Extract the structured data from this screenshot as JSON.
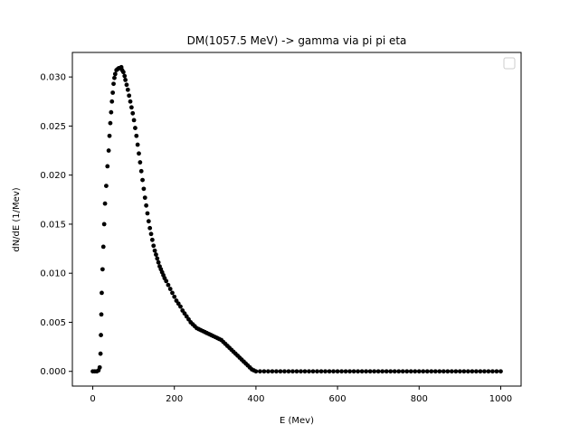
{
  "chart_data": {
    "type": "scatter",
    "title": "DM(1057.5 MeV) -> gamma via pi pi eta",
    "xlabel": "E (Mev)",
    "ylabel": "dN/dE (1/Mev)",
    "xlim": [
      -50,
      1050
    ],
    "ylim": [
      -0.0015,
      0.0325
    ],
    "xticks": [
      0,
      200,
      400,
      600,
      800,
      1000
    ],
    "xtick_labels": [
      "0",
      "200",
      "400",
      "600",
      "800",
      "1000"
    ],
    "yticks": [
      0.0,
      0.005,
      0.01,
      0.015,
      0.02,
      0.025,
      0.03
    ],
    "ytick_labels": [
      "0.000",
      "0.005",
      "0.010",
      "0.015",
      "0.020",
      "0.025",
      "0.030"
    ],
    "grid": false,
    "legend": {
      "placement": "upper-right",
      "entries": []
    },
    "marker_color": "#000000",
    "series": [
      {
        "points": [
          [
            0,
            0.0
          ],
          [
            5,
            0.0
          ],
          [
            10,
            0.0
          ],
          [
            14,
            0.0001
          ],
          [
            17,
            0.0004
          ],
          [
            19,
            0.0018
          ],
          [
            20,
            0.0037
          ],
          [
            21,
            0.0058
          ],
          [
            22,
            0.008
          ],
          [
            24,
            0.0104
          ],
          [
            26,
            0.0127
          ],
          [
            28,
            0.015
          ],
          [
            30,
            0.0171
          ],
          [
            33,
            0.0189
          ],
          [
            36,
            0.0209
          ],
          [
            39,
            0.0225
          ],
          [
            41,
            0.024
          ],
          [
            43,
            0.0253
          ],
          [
            45,
            0.0264
          ],
          [
            47,
            0.0275
          ],
          [
            49,
            0.0284
          ],
          [
            51,
            0.0293
          ],
          [
            53,
            0.0299
          ],
          [
            55,
            0.0303
          ],
          [
            58,
            0.0307
          ],
          [
            61,
            0.0308
          ],
          [
            64,
            0.0309
          ],
          [
            67,
            0.0309
          ],
          [
            70,
            0.031
          ],
          [
            72,
            0.0307
          ],
          [
            75,
            0.0305
          ],
          [
            78,
            0.0301
          ],
          [
            80,
            0.0297
          ],
          [
            83,
            0.0292
          ],
          [
            86,
            0.0287
          ],
          [
            89,
            0.0281
          ],
          [
            92,
            0.0275
          ],
          [
            95,
            0.0269
          ],
          [
            98,
            0.0263
          ],
          [
            101,
            0.0256
          ],
          [
            104,
            0.0248
          ],
          [
            107,
            0.024
          ],
          [
            110,
            0.0231
          ],
          [
            113,
            0.0222
          ],
          [
            116,
            0.0213
          ],
          [
            119,
            0.0204
          ],
          [
            122,
            0.0195
          ],
          [
            125,
            0.0186
          ],
          [
            128,
            0.0177
          ],
          [
            131,
            0.0169
          ],
          [
            134,
            0.0161
          ],
          [
            137,
            0.0153
          ],
          [
            140,
            0.0146
          ],
          [
            143,
            0.014
          ],
          [
            146,
            0.0134
          ],
          [
            149,
            0.0128
          ],
          [
            152,
            0.0123
          ],
          [
            155,
            0.0119
          ],
          [
            158,
            0.0115
          ],
          [
            161,
            0.0111
          ],
          [
            164,
            0.0107
          ],
          [
            167,
            0.0104
          ],
          [
            170,
            0.0101
          ],
          [
            173,
            0.0098
          ],
          [
            176,
            0.0095
          ],
          [
            180,
            0.0092
          ],
          [
            185,
            0.0088
          ],
          [
            190,
            0.0084
          ],
          [
            195,
            0.008
          ],
          [
            200,
            0.0076
          ],
          [
            205,
            0.0072
          ],
          [
            210,
            0.0069
          ],
          [
            215,
            0.0066
          ],
          [
            220,
            0.0062
          ],
          [
            225,
            0.0059
          ],
          [
            230,
            0.0056
          ],
          [
            235,
            0.0053
          ],
          [
            240,
            0.005
          ],
          [
            245,
            0.0048
          ],
          [
            250,
            0.0046
          ],
          [
            255,
            0.0044
          ],
          [
            260,
            0.0043
          ],
          [
            265,
            0.0042
          ],
          [
            270,
            0.0041
          ],
          [
            275,
            0.004
          ],
          [
            280,
            0.0039
          ],
          [
            285,
            0.0038
          ],
          [
            290,
            0.0037
          ],
          [
            295,
            0.0036
          ],
          [
            300,
            0.0035
          ],
          [
            305,
            0.0034
          ],
          [
            310,
            0.0033
          ],
          [
            315,
            0.0032
          ],
          [
            320,
            0.003
          ],
          [
            325,
            0.0028
          ],
          [
            330,
            0.0026
          ],
          [
            335,
            0.0024
          ],
          [
            340,
            0.0022
          ],
          [
            345,
            0.002
          ],
          [
            350,
            0.0018
          ],
          [
            355,
            0.0016
          ],
          [
            360,
            0.0014
          ],
          [
            365,
            0.0012
          ],
          [
            370,
            0.001
          ],
          [
            375,
            0.0008
          ],
          [
            380,
            0.0006
          ],
          [
            385,
            0.0004
          ],
          [
            390,
            0.0002
          ],
          [
            395,
            0.0001
          ],
          [
            400,
            0.0
          ],
          [
            410,
            0.0
          ],
          [
            420,
            0.0
          ],
          [
            430,
            0.0
          ],
          [
            440,
            0.0
          ],
          [
            450,
            0.0
          ],
          [
            460,
            0.0
          ],
          [
            470,
            0.0
          ],
          [
            480,
            0.0
          ],
          [
            490,
            0.0
          ],
          [
            500,
            0.0
          ],
          [
            510,
            0.0
          ],
          [
            520,
            0.0
          ],
          [
            530,
            0.0
          ],
          [
            540,
            0.0
          ],
          [
            550,
            0.0
          ],
          [
            560,
            0.0
          ],
          [
            570,
            0.0
          ],
          [
            580,
            0.0
          ],
          [
            590,
            0.0
          ],
          [
            600,
            0.0
          ],
          [
            610,
            0.0
          ],
          [
            620,
            0.0
          ],
          [
            630,
            0.0
          ],
          [
            640,
            0.0
          ],
          [
            650,
            0.0
          ],
          [
            660,
            0.0
          ],
          [
            670,
            0.0
          ],
          [
            680,
            0.0
          ],
          [
            690,
            0.0
          ],
          [
            700,
            0.0
          ],
          [
            710,
            0.0
          ],
          [
            720,
            0.0
          ],
          [
            730,
            0.0
          ],
          [
            740,
            0.0
          ],
          [
            750,
            0.0
          ],
          [
            760,
            0.0
          ],
          [
            770,
            0.0
          ],
          [
            780,
            0.0
          ],
          [
            790,
            0.0
          ],
          [
            800,
            0.0
          ],
          [
            810,
            0.0
          ],
          [
            820,
            0.0
          ],
          [
            830,
            0.0
          ],
          [
            840,
            0.0
          ],
          [
            850,
            0.0
          ],
          [
            860,
            0.0
          ],
          [
            870,
            0.0
          ],
          [
            880,
            0.0
          ],
          [
            890,
            0.0
          ],
          [
            900,
            0.0
          ],
          [
            910,
            0.0
          ],
          [
            920,
            0.0
          ],
          [
            930,
            0.0
          ],
          [
            940,
            0.0
          ],
          [
            950,
            0.0
          ],
          [
            960,
            0.0
          ],
          [
            970,
            0.0
          ],
          [
            980,
            0.0
          ],
          [
            990,
            0.0
          ],
          [
            1000,
            0.0
          ]
        ]
      }
    ]
  }
}
